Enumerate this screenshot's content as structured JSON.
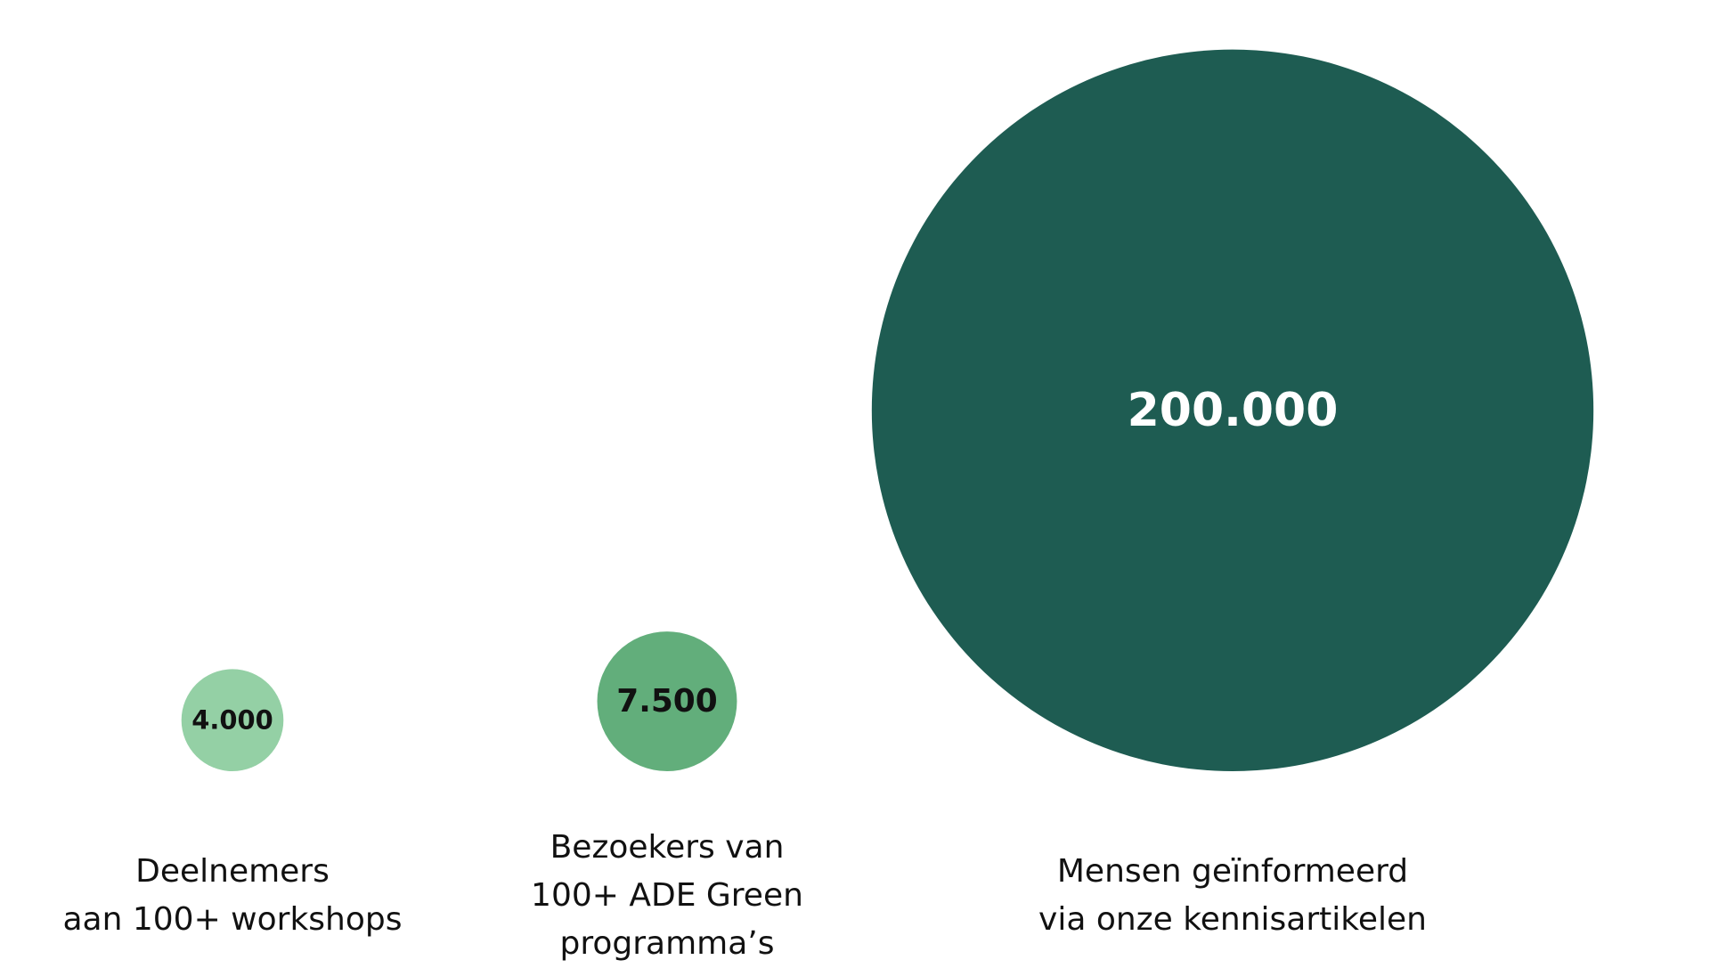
{
  "chart_data": {
    "type": "bubble",
    "categories": [
      "Deelnemers\naan 100+ workshops",
      "Bezoekers van\n100+ ADE Green\nprogramma’s",
      "Mensen geïnformeerd\nvia onze kennisartikelen"
    ],
    "values": [
      4000,
      7500,
      200000
    ],
    "value_labels": [
      "4.000",
      "7.500",
      "200.000"
    ],
    "colors": [
      "#94d0a5",
      "#62ae7b",
      "#1e5c52"
    ],
    "label_colors": [
      "#111111",
      "#111111",
      "#ffffff"
    ]
  }
}
